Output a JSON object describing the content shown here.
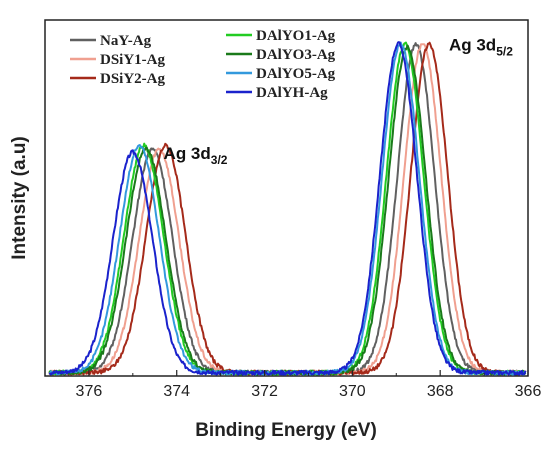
{
  "chart_data": {
    "type": "line",
    "title": "",
    "xlabel": "Binding Energy (eV)",
    "ylabel": "Intensity (a.u)",
    "xlim": [
      377,
      366
    ],
    "x_reversed": true,
    "ylim": [
      0,
      1.05
    ],
    "y_ticks_shown": false,
    "x_ticks": [
      376,
      374,
      372,
      370,
      368,
      366
    ],
    "grid": false,
    "legend_position": "top-left",
    "annotations": [
      {
        "text": "Ag 3d",
        "sub": "3/2",
        "x": 374.3,
        "y": 0.64
      },
      {
        "text": "Ag 3d",
        "sub": "5/2",
        "x": 367.8,
        "y": 0.96
      }
    ],
    "series": [
      {
        "name": "NaY-Ag",
        "color": "#606060",
        "peak32": 374.55,
        "peak52": 368.55,
        "h32": 0.66,
        "h52": 0.97
      },
      {
        "name": "DSiY1-Ag",
        "color": "#f0a090",
        "peak32": 374.4,
        "peak52": 368.4,
        "h32": 0.66,
        "h52": 0.97
      },
      {
        "name": "DSiY2-Ag",
        "color": "#a52a1a",
        "peak32": 374.25,
        "peak52": 368.25,
        "h32": 0.67,
        "h52": 0.97
      },
      {
        "name": "DAlYO1-Ag",
        "color": "#22cc22",
        "peak32": 374.75,
        "peak52": 368.8,
        "h32": 0.67,
        "h52": 0.97
      },
      {
        "name": "DAlYO3-Ag",
        "color": "#1a7a1a",
        "peak32": 374.7,
        "peak52": 368.75,
        "h32": 0.66,
        "h52": 0.96
      },
      {
        "name": "DAlYO5-Ag",
        "color": "#3399dd",
        "peak32": 374.85,
        "peak52": 368.9,
        "h32": 0.67,
        "h52": 0.97
      },
      {
        "name": "DAlYH-Ag",
        "color": "#1a22cc",
        "peak32": 375.0,
        "peak52": 368.95,
        "h32": 0.65,
        "h52": 0.97
      }
    ]
  }
}
